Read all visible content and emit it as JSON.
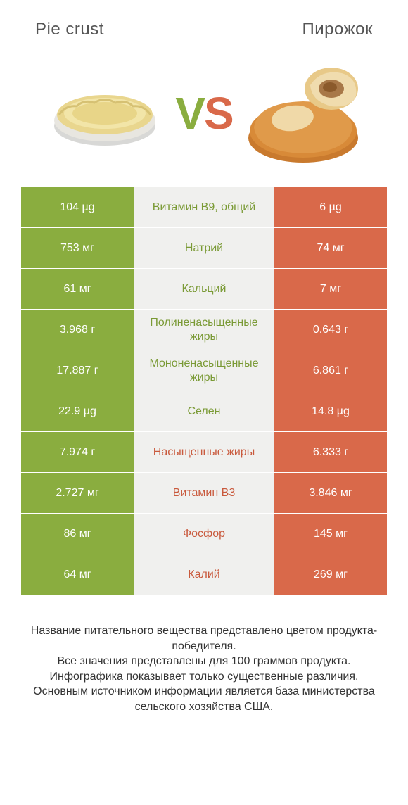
{
  "colors": {
    "green": "#8aad3f",
    "orange": "#d9694a",
    "mid_bg": "#f0f0ee",
    "text_green": "#7a9a35",
    "text_orange": "#c95a3d"
  },
  "header": {
    "left_title": "Pie crust",
    "right_title": "Пирожок"
  },
  "vs": {
    "v": "V",
    "s": "S"
  },
  "rows": [
    {
      "left": "104 µg",
      "label": "Витамин B9, общий",
      "right": "6 µg",
      "winner": "left"
    },
    {
      "left": "753 мг",
      "label": "Натрий",
      "right": "74 мг",
      "winner": "left"
    },
    {
      "left": "61 мг",
      "label": "Кальций",
      "right": "7 мг",
      "winner": "left"
    },
    {
      "left": "3.968 г",
      "label": "Полиненасыщенные жиры",
      "right": "0.643 г",
      "winner": "left"
    },
    {
      "left": "17.887 г",
      "label": "Мононенасыщенные жиры",
      "right": "6.861 г",
      "winner": "left"
    },
    {
      "left": "22.9 µg",
      "label": "Селен",
      "right": "14.8 µg",
      "winner": "left"
    },
    {
      "left": "7.974 г",
      "label": "Насыщенные жиры",
      "right": "6.333 г",
      "winner": "right"
    },
    {
      "left": "2.727 мг",
      "label": "Витамин B3",
      "right": "3.846 мг",
      "winner": "right"
    },
    {
      "left": "86 мг",
      "label": "Фосфор",
      "right": "145 мг",
      "winner": "right"
    },
    {
      "left": "64 мг",
      "label": "Калий",
      "right": "269 мг",
      "winner": "right"
    }
  ],
  "footer": {
    "line1": "Название питательного вещества представлено цветом продукта-победителя.",
    "line2": "Все значения представлены для 100 граммов продукта.",
    "line3": "Инфографика показывает только существенные различия.",
    "line4": "Основным источником информации является база министерства сельского хозяйства США."
  }
}
